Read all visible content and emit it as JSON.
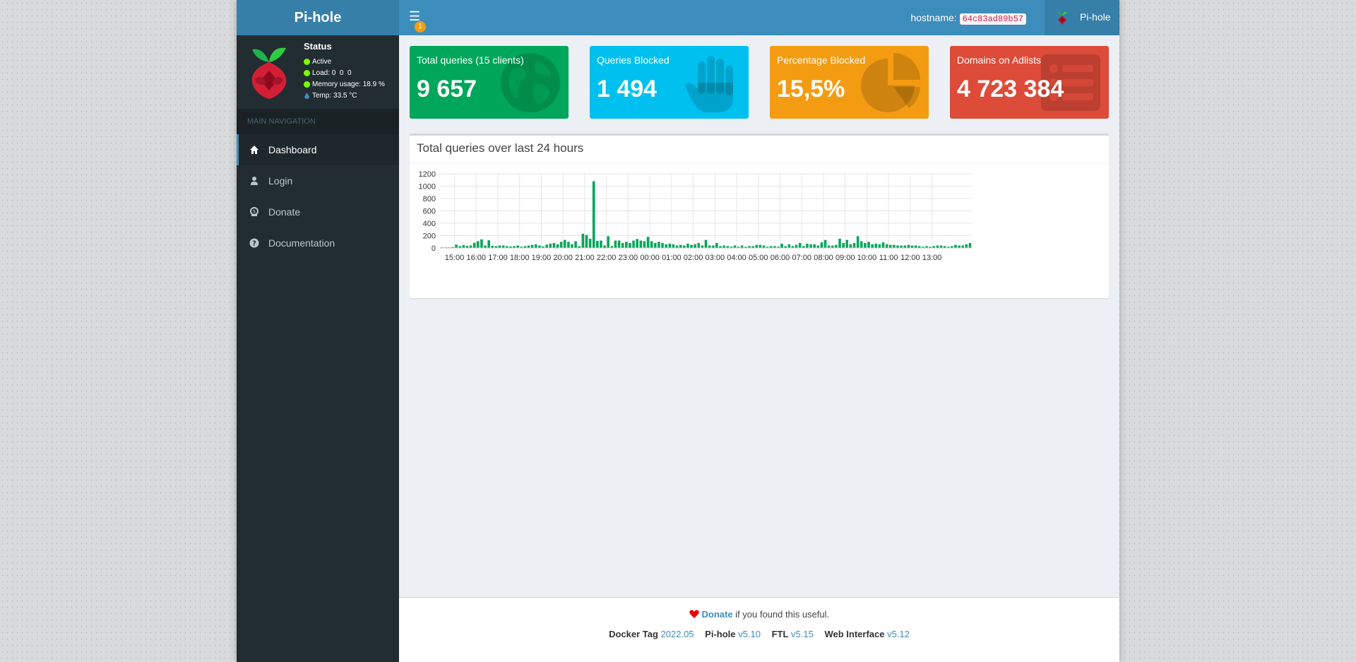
{
  "header": {
    "logo_text": "Pi-hole",
    "notification_count": "1",
    "hostname_label": "hostname:",
    "hostname_value": "64c83ad89b57",
    "user_label": "Pi-hole"
  },
  "status": {
    "title": "Status",
    "active": "Active",
    "load_label": "Load:",
    "load_values": "0  0  0",
    "memory_label": "Memory usage:",
    "memory_value": "18.9 %",
    "temp_label": "Temp:",
    "temp_value": "33.5 °C"
  },
  "sidebar": {
    "header": "MAIN NAVIGATION",
    "items": [
      {
        "label": "Dashboard",
        "icon": "home-icon",
        "active": true
      },
      {
        "label": "Login",
        "icon": "user-icon",
        "active": false
      },
      {
        "label": "Donate",
        "icon": "donate-icon",
        "active": false
      },
      {
        "label": "Documentation",
        "icon": "question-circle-icon",
        "active": false
      }
    ]
  },
  "stats": [
    {
      "label": "Total queries (15 clients)",
      "value": "9 657",
      "color": "#00a65a",
      "icon": "globe-icon"
    },
    {
      "label": "Queries Blocked",
      "value": "1 494",
      "color": "#00c0ef",
      "icon": "hand-icon"
    },
    {
      "label": "Percentage Blocked",
      "value": "15,5%",
      "color": "#f39c12",
      "icon": "pie-chart-icon"
    },
    {
      "label": "Domains on Adlists",
      "value": "4 723 384",
      "color": "#dd4b39",
      "icon": "list-icon"
    }
  ],
  "chart_panel": {
    "title": "Total queries over last 24 hours"
  },
  "chart_data": {
    "type": "bar",
    "title": "Total queries over last 24 hours",
    "ylim": [
      0,
      1200
    ],
    "yticks": [
      0,
      200,
      400,
      600,
      800,
      1000,
      1200
    ],
    "xticks": [
      "15:00",
      "16:00",
      "17:00",
      "18:00",
      "19:00",
      "20:00",
      "21:00",
      "22:00",
      "23:00",
      "00:00",
      "01:00",
      "02:00",
      "03:00",
      "04:00",
      "05:00",
      "06:00",
      "07:00",
      "08:00",
      "09:00",
      "10:00",
      "11:00",
      "12:00",
      "13:00"
    ],
    "first_tick_index": 4,
    "bars_per_hour": 6,
    "color": "#00a65a",
    "values": [
      10,
      10,
      10,
      15,
      55,
      30,
      45,
      35,
      40,
      85,
      110,
      140,
      40,
      125,
      35,
      30,
      40,
      40,
      30,
      25,
      30,
      40,
      20,
      30,
      40,
      50,
      60,
      40,
      25,
      55,
      70,
      80,
      60,
      100,
      130,
      100,
      60,
      110,
      30,
      230,
      210,
      150,
      1080,
      115,
      120,
      40,
      190,
      30,
      120,
      120,
      80,
      100,
      80,
      120,
      145,
      120,
      110,
      180,
      110,
      80,
      100,
      80,
      60,
      70,
      60,
      40,
      50,
      40,
      70,
      50,
      60,
      80,
      40,
      130,
      40,
      40,
      80,
      30,
      40,
      30,
      20,
      40,
      20,
      40,
      20,
      30,
      30,
      50,
      50,
      40,
      20,
      30,
      30,
      20,
      70,
      30,
      60,
      30,
      50,
      80,
      30,
      70,
      60,
      60,
      40,
      90,
      130,
      40,
      40,
      50,
      150,
      80,
      130,
      60,
      80,
      190,
      110,
      80,
      100,
      60,
      70,
      60,
      90,
      60,
      50,
      50,
      40,
      40,
      40,
      50,
      40,
      40,
      30,
      20,
      30,
      20,
      30,
      40,
      40,
      30,
      20,
      30,
      50,
      40,
      40,
      60,
      80
    ]
  },
  "footer": {
    "donate_link": "Donate",
    "donate_text": " if you found this useful.",
    "docker_label": "Docker Tag",
    "docker_value": "2022.05",
    "pihole_label": "Pi-hole",
    "pihole_value": "v5.10",
    "ftl_label": "FTL",
    "ftl_value": "v5.15",
    "web_label": "Web Interface",
    "web_value": "v5.12"
  }
}
